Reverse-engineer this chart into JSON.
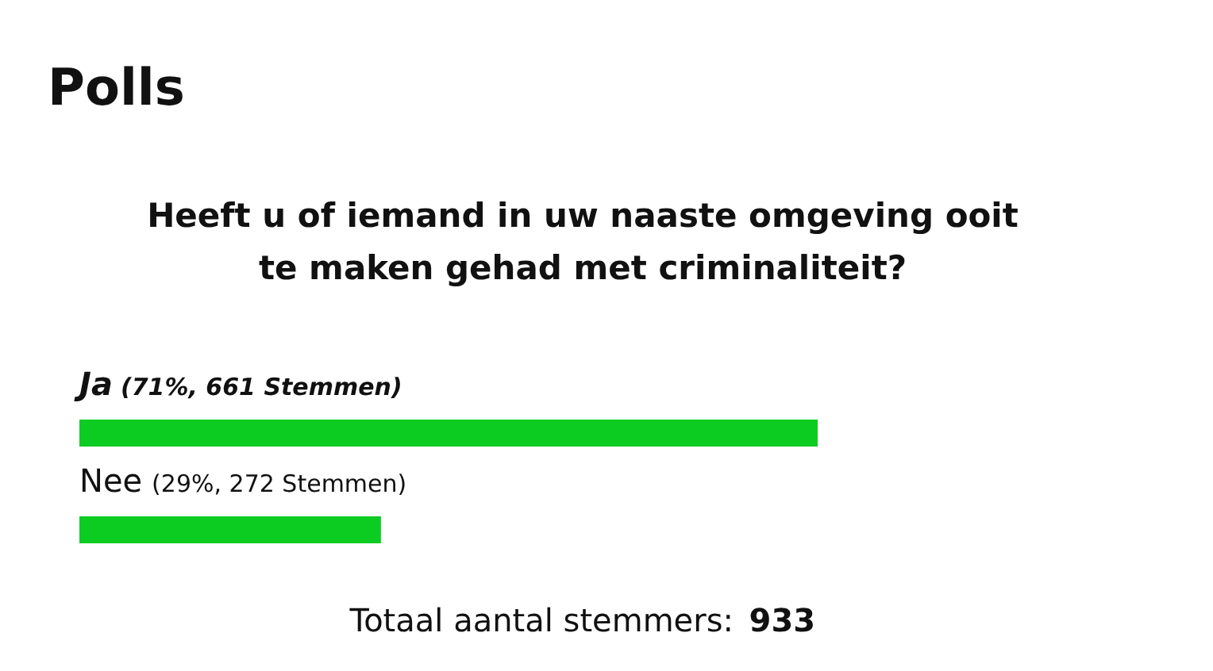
{
  "chart_data": {
    "type": "bar",
    "orientation": "horizontal",
    "title": "Polls",
    "subtitle": "Heeft u of iemand in uw naaste omgeving ooit te maken gehad met criminaliteit?",
    "categories": [
      "Ja",
      "Nee"
    ],
    "values": [
      71,
      29
    ],
    "value_labels": [
      "(71%, 661 Stemmen)",
      "(29%, 272 Stemmen)"
    ],
    "color": "#0ccc22",
    "annotations": [
      "Totaal aantal stemmers: 933"
    ]
  }
}
